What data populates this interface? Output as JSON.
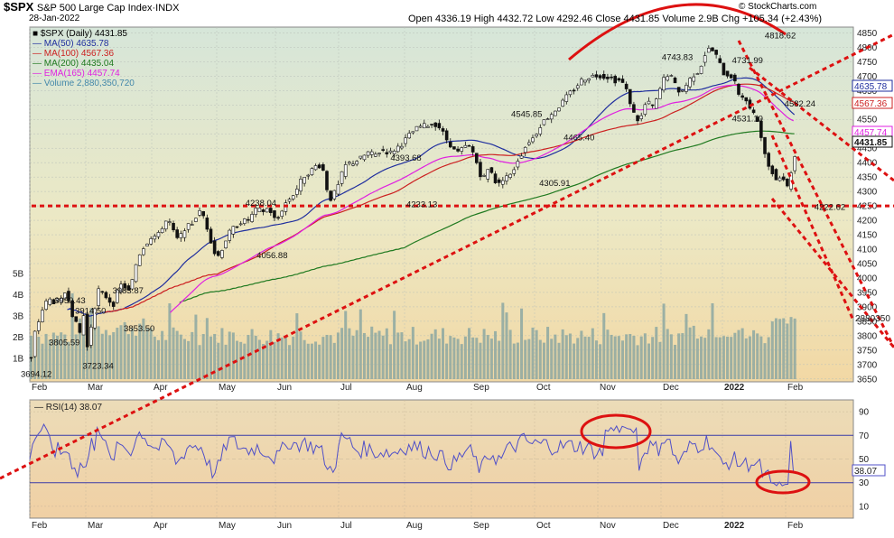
{
  "header": {
    "symbol": "$SPX",
    "name": "S&P 500 Large Cap Index",
    "exchange": "INDX",
    "date": "28-Jan-2022",
    "ohlc": "Open 4336.19  High 4432.72  Low 4292.46  Close 4431.85  Volume 2.9B  Chg +105.34 (+2.43%)",
    "logo": "© StockCharts.com"
  },
  "chart_data": [
    {
      "type": "line",
      "panel": "price",
      "legend": [
        {
          "text": "$SPX (Daily) 4431.85",
          "color": "#000000"
        },
        {
          "text": "MA(50) 4635.78",
          "color": "#1f2e9e"
        },
        {
          "text": "MA(100) 4567.36",
          "color": "#cc2020"
        },
        {
          "text": "MA(200) 4435.04",
          "color": "#207a20"
        },
        {
          "text": "EMA(165) 4457.74",
          "color": "#e020e0"
        },
        {
          "text": "Volume 2,880,350,720",
          "color": "#4488aa"
        }
      ],
      "months": [
        "Feb",
        "Mar",
        "Apr",
        "May",
        "Jun",
        "Jul",
        "Aug",
        "Sep",
        "Oct",
        "Nov",
        "Dec",
        "2022",
        "Feb"
      ],
      "y_ticks": [
        3650,
        3700,
        3750,
        3800,
        3850,
        3900,
        3950,
        4000,
        4050,
        4100,
        4150,
        4200,
        4250,
        4300,
        4350,
        4400,
        4450,
        4500,
        4550,
        4600,
        4650,
        4700,
        4750,
        4800,
        4850
      ],
      "y_tick_labels": [
        "3650",
        "3700",
        "3750",
        "3800",
        "3850",
        "3900",
        "3950",
        "4000",
        "4050",
        "4100",
        "4150",
        "4200",
        "4250",
        "4300",
        "4350",
        "4400",
        "4450",
        "4500",
        "4550",
        "4600",
        "4650",
        "4700",
        "4750",
        "4800",
        "4850"
      ],
      "ylim": [
        3640,
        4870
      ],
      "close_path": [
        [
          0,
          3720
        ],
        [
          3,
          3800
        ],
        [
          6,
          3830
        ],
        [
          10,
          3870
        ],
        [
          14,
          3910
        ],
        [
          18,
          3920
        ],
        [
          22,
          3930
        ],
        [
          26,
          3905
        ],
        [
          30,
          3935
        ],
        [
          33,
          3915
        ],
        [
          36,
          3950
        ],
        [
          40,
          3930
        ],
        [
          44,
          3875
        ],
        [
          48,
          3840
        ],
        [
          52,
          3810
        ],
        [
          56,
          3870
        ],
        [
          58,
          3740
        ],
        [
          60,
          3760
        ],
        [
          63,
          3810
        ],
        [
          66,
          3880
        ],
        [
          70,
          3925
        ],
        [
          73,
          3975
        ],
        [
          76,
          3945
        ],
        [
          80,
          3935
        ],
        [
          84,
          3920
        ],
        [
          87,
          3900
        ],
        [
          90,
          3930
        ],
        [
          93,
          3960
        ],
        [
          96,
          3975
        ],
        [
          100,
          3970
        ],
        [
          103,
          3950
        ],
        [
          106,
          3960
        ],
        [
          110,
          4020
        ],
        [
          114,
          4075
        ],
        [
          118,
          4095
        ],
        [
          122,
          4120
        ],
        [
          126,
          4130
        ],
        [
          130,
          4155
        ],
        [
          134,
          4135
        ],
        [
          138,
          4165
        ],
        [
          142,
          4190
        ],
        [
          146,
          4205
        ],
        [
          150,
          4180
        ],
        [
          154,
          4140
        ],
        [
          158,
          4130
        ],
        [
          162,
          4165
        ],
        [
          166,
          4180
        ],
        [
          170,
          4180
        ],
        [
          174,
          4200
        ],
        [
          178,
          4225
        ],
        [
          182,
          4230
        ],
        [
          186,
          4200
        ],
        [
          190,
          4150
        ],
        [
          194,
          4110
        ],
        [
          198,
          4065
        ],
        [
          202,
          4090
        ],
        [
          206,
          4115
        ],
        [
          210,
          4150
        ],
        [
          214,
          4165
        ],
        [
          218,
          4180
        ],
        [
          222,
          4190
        ],
        [
          226,
          4200
        ],
        [
          230,
          4195
        ],
        [
          234,
          4210
        ],
        [
          238,
          4225
        ],
        [
          242,
          4245
        ],
        [
          246,
          4225
        ],
        [
          250,
          4240
        ],
        [
          254,
          4240
        ],
        [
          258,
          4220
        ],
        [
          262,
          4190
        ],
        [
          266,
          4225
        ],
        [
          270,
          4250
        ],
        [
          274,
          4270
        ],
        [
          278,
          4280
        ],
        [
          282,
          4300
        ],
        [
          286,
          4320
        ],
        [
          290,
          4350
        ],
        [
          294,
          4360
        ],
        [
          298,
          4370
        ],
        [
          302,
          4380
        ],
        [
          306,
          4395
        ],
        [
          310,
          4385
        ],
        [
          314,
          4360
        ],
        [
          318,
          4260
        ],
        [
          322,
          4290
        ],
        [
          326,
          4300
        ],
        [
          330,
          4340
        ],
        [
          334,
          4380
        ],
        [
          338,
          4400
        ],
        [
          342,
          4395
        ],
        [
          346,
          4405
        ],
        [
          350,
          4410
        ],
        [
          354,
          4420
        ],
        [
          358,
          4430
        ],
        [
          362,
          4440
        ],
        [
          366,
          4420
        ],
        [
          370,
          4435
        ],
        [
          374,
          4440
        ],
        [
          378,
          4445
        ],
        [
          382,
          4430
        ],
        [
          386,
          4440
        ],
        [
          390,
          4450
        ],
        [
          394,
          4460
        ],
        [
          398,
          4470
        ],
        [
          402,
          4490
        ],
        [
          406,
          4500
        ],
        [
          410,
          4515
        ],
        [
          414,
          4520
        ],
        [
          418,
          4530
        ],
        [
          422,
          4525
        ],
        [
          426,
          4535
        ],
        [
          430,
          4535
        ],
        [
          434,
          4530
        ],
        [
          438,
          4515
        ],
        [
          442,
          4490
        ],
        [
          446,
          4470
        ],
        [
          450,
          4455
        ],
        [
          454,
          4430
        ],
        [
          458,
          4440
        ],
        [
          462,
          4450
        ],
        [
          466,
          4460
        ],
        [
          470,
          4450
        ],
        [
          474,
          4420
        ],
        [
          478,
          4380
        ],
        [
          482,
          4340
        ],
        [
          486,
          4360
        ],
        [
          490,
          4390
        ],
        [
          494,
          4350
        ],
        [
          498,
          4320
        ],
        [
          502,
          4330
        ],
        [
          506,
          4360
        ],
        [
          510,
          4350
        ],
        [
          514,
          4360
        ],
        [
          518,
          4400
        ],
        [
          522,
          4420
        ],
        [
          526,
          4440
        ],
        [
          530,
          4470
        ],
        [
          534,
          4480
        ],
        [
          538,
          4490
        ],
        [
          542,
          4520
        ],
        [
          546,
          4540
        ],
        [
          550,
          4550
        ],
        [
          554,
          4565
        ],
        [
          558,
          4575
        ],
        [
          562,
          4590
        ],
        [
          566,
          4600
        ],
        [
          570,
          4620
        ],
        [
          574,
          4635
        ],
        [
          578,
          4650
        ],
        [
          582,
          4660
        ],
        [
          586,
          4680
        ],
        [
          590,
          4690
        ],
        [
          594,
          4695
        ],
        [
          598,
          4700
        ],
        [
          602,
          4700
        ],
        [
          606,
          4705
        ],
        [
          610,
          4700
        ],
        [
          614,
          4695
        ],
        [
          618,
          4700
        ],
        [
          622,
          4690
        ],
        [
          626,
          4680
        ],
        [
          630,
          4690
        ],
        [
          634,
          4660
        ],
        [
          638,
          4640
        ],
        [
          642,
          4580
        ],
        [
          646,
          4560
        ],
        [
          650,
          4540
        ],
        [
          654,
          4580
        ],
        [
          658,
          4620
        ],
        [
          662,
          4590
        ],
        [
          666,
          4600
        ],
        [
          670,
          4630
        ],
        [
          674,
          4680
        ],
        [
          678,
          4700
        ],
        [
          682,
          4710
        ],
        [
          686,
          4680
        ],
        [
          690,
          4660
        ],
        [
          694,
          4640
        ],
        [
          698,
          4660
        ],
        [
          702,
          4680
        ],
        [
          706,
          4700
        ],
        [
          710,
          4710
        ],
        [
          714,
          4720
        ],
        [
          718,
          4760
        ],
        [
          722,
          4790
        ],
        [
          726,
          4795
        ],
        [
          730,
          4780
        ],
        [
          734,
          4760
        ],
        [
          738,
          4720
        ],
        [
          742,
          4700
        ],
        [
          746,
          4710
        ],
        [
          750,
          4690
        ],
        [
          754,
          4660
        ],
        [
          758,
          4620
        ],
        [
          762,
          4640
        ],
        [
          766,
          4590
        ],
        [
          770,
          4580
        ],
        [
          774,
          4550
        ],
        [
          778,
          4540
        ],
        [
          782,
          4450
        ],
        [
          786,
          4400
        ],
        [
          790,
          4380
        ],
        [
          794,
          4360
        ],
        [
          798,
          4320
        ],
        [
          802,
          4390
        ],
        [
          806,
          4300
        ],
        [
          810,
          4330
        ],
        [
          814,
          4410
        ],
        [
          818,
          4432
        ]
      ],
      "annotations": [
        {
          "text": "3694.12",
          "x": 0,
          "y": 3694
        },
        {
          "text": "3950.43",
          "x": 36,
          "y": 3950
        },
        {
          "text": "3914.50",
          "x": 58,
          "y": 3914
        },
        {
          "text": "3983.87",
          "x": 98,
          "y": 3984
        },
        {
          "text": "3805.59",
          "x": 30,
          "y": 3805
        },
        {
          "text": "3723.34",
          "x": 66,
          "y": 3723
        },
        {
          "text": "3853.50",
          "x": 110,
          "y": 3853
        },
        {
          "text": "4238.04",
          "x": 240,
          "y": 4238
        },
        {
          "text": "4056.88",
          "x": 252,
          "y": 4057
        },
        {
          "text": "4393.68",
          "x": 395,
          "y": 4394
        },
        {
          "text": "4233.13",
          "x": 412,
          "y": 4233
        },
        {
          "text": "4545.85",
          "x": 524,
          "y": 4546
        },
        {
          "text": "4465.40",
          "x": 580,
          "y": 4465
        },
        {
          "text": "4305.91",
          "x": 554,
          "y": 4306
        },
        {
          "text": "4743.83",
          "x": 685,
          "y": 4744
        },
        {
          "text": "4731.99",
          "x": 760,
          "y": 4732
        },
        {
          "text": "4818.62",
          "x": 795,
          "y": 4819
        },
        {
          "text": "4531.10",
          "x": 760,
          "y": 4531
        },
        {
          "text": "4582.24",
          "x": 816,
          "y": 4582
        },
        {
          "text": "4222.62",
          "x": 848,
          "y": 4223
        }
      ],
      "right_labels": [
        "4635.78",
        "4567.36",
        "4457.74",
        "4431.85"
      ],
      "volume_axis": {
        "labels": [
          "5B",
          "4B",
          "3B",
          "2B",
          "1B"
        ],
        "values": [
          5,
          4,
          3,
          2,
          1
        ]
      },
      "volume_side_label": "2880350"
    },
    {
      "type": "line",
      "panel": "rsi",
      "title": "RSI(14) 38.07",
      "y_ticks": [
        10,
        30,
        50,
        70,
        90
      ],
      "y_tick_labels": [
        "10",
        "30",
        "50",
        "70",
        "90"
      ],
      "ylim": [
        0,
        100
      ],
      "last_value": "38.07",
      "months": [
        "Feb",
        "Mar",
        "Apr",
        "May",
        "Jun",
        "Jul",
        "Aug",
        "Sep",
        "Oct",
        "Nov",
        "Dec",
        "2022",
        "Feb"
      ]
    }
  ]
}
